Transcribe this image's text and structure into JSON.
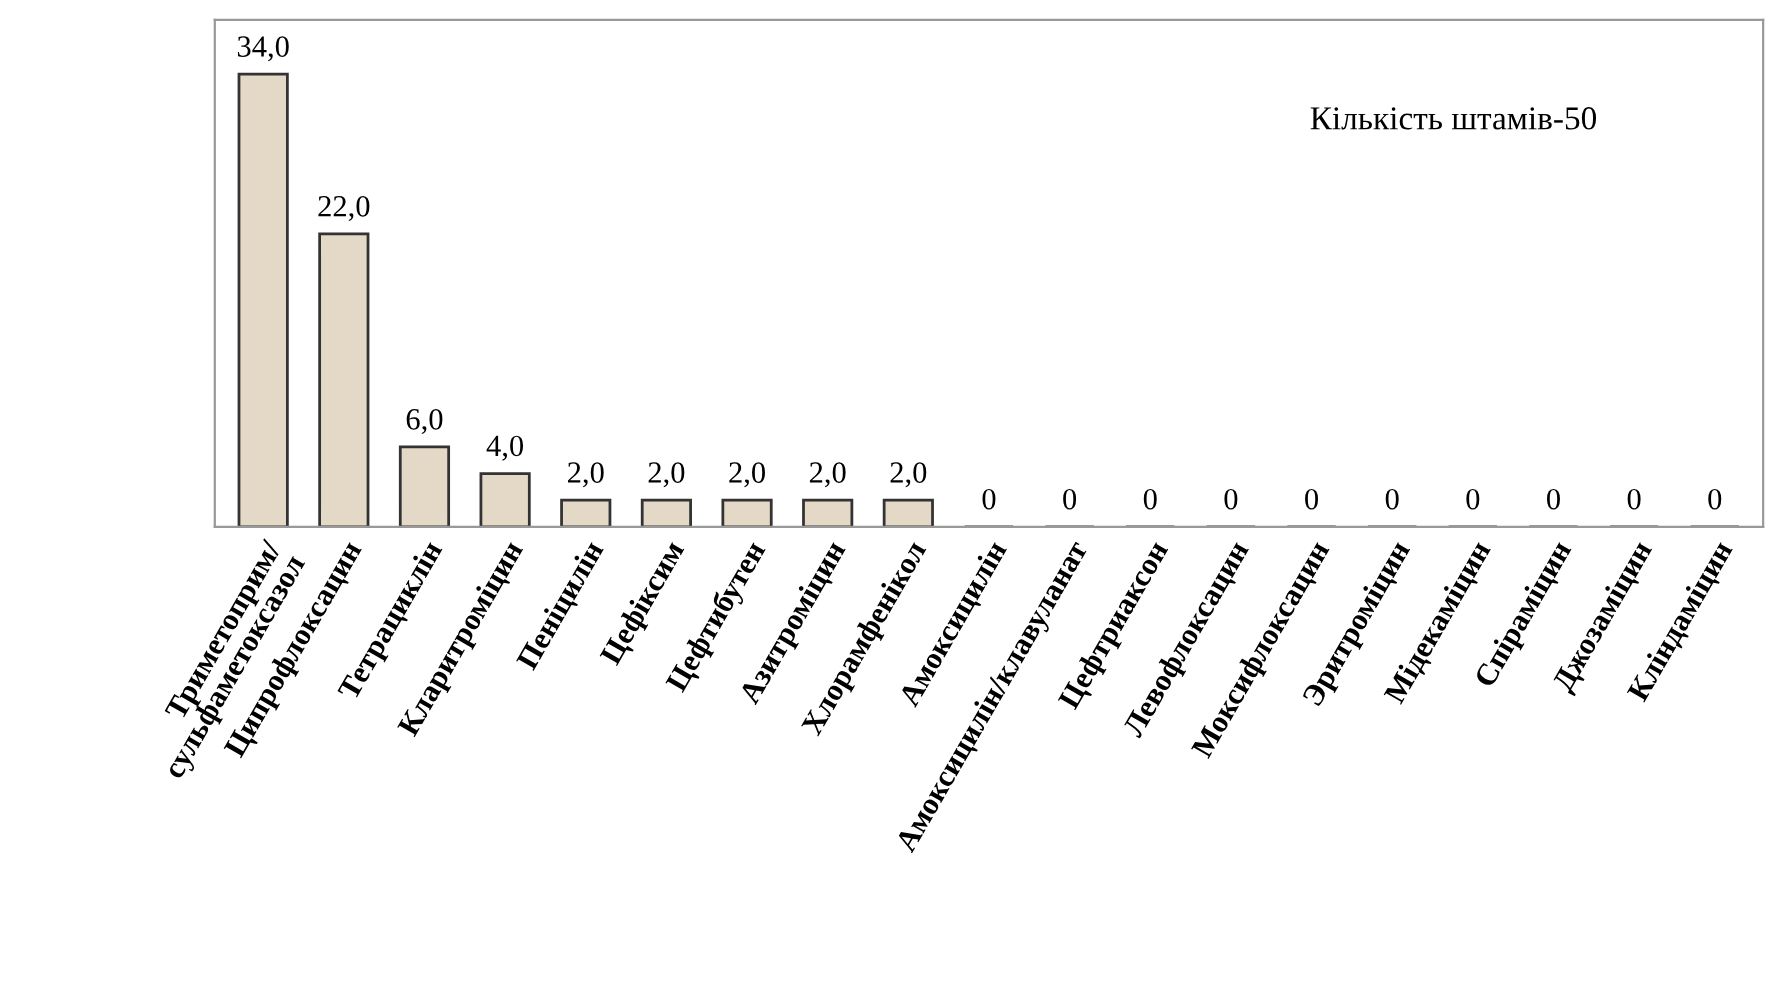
{
  "chart_data": {
    "type": "bar",
    "categories": [
      "Триметоприм/\nсульфаметоксазол",
      "Ципрофлоксацин",
      "Тетрациклін",
      "Кларитроміцин",
      "Пеніцилін",
      "Цефіксим",
      "Цефтибутен",
      "Азитроміцин",
      "Хлорамфенікол",
      "Амоксицилін",
      "Амоксицилін/клавуланат",
      "Цефтриаксон",
      "Левофлоксацин",
      "Моксифлоксацин",
      "Эритроміцин",
      "Мідекаміцин",
      "Спіраміцин",
      "Джозаміцин",
      "Кліндаміцин"
    ],
    "values": [
      34,
      22,
      6,
      4,
      2,
      2,
      2,
      2,
      2,
      0,
      0,
      0,
      0,
      0,
      0,
      0,
      0,
      0,
      0
    ],
    "value_labels": [
      "34,0",
      "22,0",
      "6,0",
      "4,0",
      "2,0",
      "2,0",
      "2,0",
      "2,0",
      "2,0",
      "0",
      "0",
      "0",
      "0",
      "0",
      "0",
      "0",
      "0",
      "0",
      "0"
    ],
    "color": "#e3d9c6",
    "annotations": [
      "Кількість штамів-50"
    ],
    "grid": false,
    "legend": false
  }
}
